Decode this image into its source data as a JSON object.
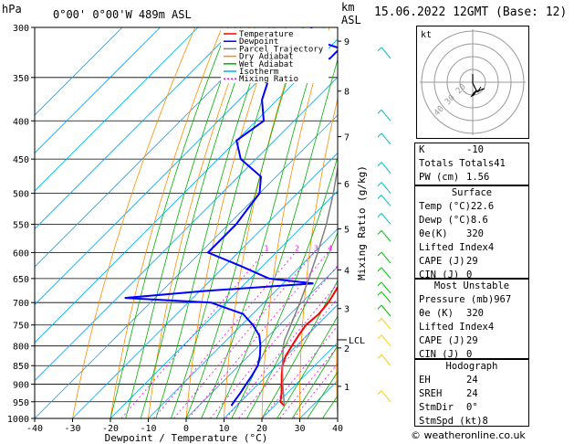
{
  "header": {
    "location": "0°00'  0°00'W  489m  ASL",
    "datetime": "15.06.2022  12GMT  (Base: 12)",
    "hpa_label": "hPa",
    "km_label": "km",
    "asl_label": "ASL"
  },
  "legend": {
    "items": [
      {
        "label": "Temperature",
        "color": "#ff0000",
        "dash": false
      },
      {
        "label": "Dewpoint",
        "color": "#0000ff",
        "dash": false
      },
      {
        "label": "Parcel Trajectory",
        "color": "#808080",
        "dash": false
      },
      {
        "label": "Dry Adiabat",
        "color": "#ff8c00",
        "dash": false
      },
      {
        "label": "Wet Adiabat",
        "color": "#00b000",
        "dash": false
      },
      {
        "label": "Isotherm",
        "color": "#00aaff",
        "dash": false
      },
      {
        "label": "Mixing Ratio",
        "color": "#ff00ff",
        "dash": true
      }
    ]
  },
  "chart_data": {
    "type": "line",
    "xlabel": "Dewpoint / Temperature (°C)",
    "ylabel_right": "Mixing Ratio (g/kg)",
    "xlim": [
      -40,
      40
    ],
    "plim": [
      300,
      1000
    ],
    "x_ticks": [
      -40,
      -30,
      -20,
      -10,
      0,
      10,
      20,
      30,
      40
    ],
    "pressure_ticks": [
      300,
      350,
      400,
      450,
      500,
      550,
      600,
      650,
      700,
      750,
      800,
      850,
      900,
      950,
      1000
    ],
    "km_ticks": [
      {
        "label": "9",
        "p": 313
      },
      {
        "label": "8",
        "p": 365
      },
      {
        "label": "7",
        "p": 420
      },
      {
        "label": "6",
        "p": 485
      },
      {
        "label": "5",
        "p": 558
      },
      {
        "label": "4",
        "p": 633
      },
      {
        "label": "3",
        "p": 713
      },
      {
        "label": "2",
        "p": 805
      },
      {
        "label": "1",
        "p": 906
      }
    ],
    "lcl": {
      "label": "LCL",
      "p": 785
    },
    "mixing_ratio_labels": [
      "1",
      "2",
      "3",
      "4",
      "6",
      "8",
      "10",
      "15",
      "20",
      "25"
    ],
    "mixing_ratio_values": [
      1,
      2,
      3,
      4,
      6,
      8,
      10,
      15,
      20,
      25
    ],
    "series": [
      {
        "name": "Temperature",
        "color": "#ff0000",
        "p": [
          962,
          950,
          925,
          900,
          875,
          850,
          825,
          800,
          775,
          750,
          725,
          700,
          675,
          650,
          625,
          600,
          575,
          550,
          525,
          500,
          475,
          450,
          425,
          400,
          375,
          350,
          325,
          300
        ],
        "t": [
          22.6,
          20.5,
          18.5,
          16.2,
          13.8,
          11.5,
          9.8,
          8.8,
          7.8,
          7.0,
          7.5,
          7.0,
          5.8,
          4.4,
          3.0,
          2.0,
          0.0,
          -2.2,
          -4.8,
          -7.6,
          -10.6,
          -13.8,
          -17.2,
          -21.0,
          -24.8,
          -29.2,
          -33.6,
          -38.2
        ]
      },
      {
        "name": "Dewpoint",
        "color": "#0000ff",
        "p": [
          962,
          950,
          925,
          900,
          875,
          850,
          825,
          800,
          775,
          750,
          725,
          700,
          690,
          675,
          660,
          650,
          625,
          600,
          575,
          550,
          525,
          500,
          475,
          450,
          425,
          400,
          375,
          350,
          330,
          320,
          310,
          300
        ],
        "t": [
          8.6,
          8.2,
          7.6,
          6.8,
          6.0,
          5.0,
          3.0,
          0.5,
          -2.5,
          -7.0,
          -12.5,
          -24.0,
          -48.0,
          -28.0,
          -2.0,
          -15.0,
          -26.0,
          -38.0,
          -38.0,
          -38.0,
          -39.0,
          -40.0,
          -44.0,
          -54.0,
          -60.0,
          -58.0,
          -64.0,
          -68.0,
          -57.0,
          -57.0,
          -68.0,
          -70.0
        ]
      },
      {
        "name": "Parcel Trajectory",
        "color": "#808080",
        "p": [
          962,
          925,
          900,
          850,
          800,
          785,
          750,
          700,
          650,
          600,
          550,
          500,
          450,
          400,
          350,
          300
        ],
        "t": [
          22.6,
          19.0,
          16.5,
          11.5,
          6.5,
          5.3,
          3.0,
          -0.5,
          -4.5,
          -9.0,
          -14.2,
          -20.5,
          -28.0,
          -37.0,
          -48.0,
          -61.0
        ]
      }
    ],
    "wind_colors": [
      "#00c0c0",
      "#00c000",
      "#ffcc00"
    ]
  },
  "indices": {
    "k_label": "K",
    "k": "-10",
    "tt_label": "Totals Totals",
    "tt": "41",
    "pw_label": "PW (cm)",
    "pw": "1.56"
  },
  "surface": {
    "title": "Surface",
    "rows": [
      {
        "k": "Temp (°C)",
        "v": "22.6"
      },
      {
        "k": "Dewp (°C)",
        "v": "8.6"
      },
      {
        "k": "θe(K)",
        "v": "320"
      },
      {
        "k": "Lifted Index",
        "v": "4"
      },
      {
        "k": "CAPE (J)",
        "v": "29"
      },
      {
        "k": "CIN (J)",
        "v": "0"
      }
    ]
  },
  "most_unstable": {
    "title": "Most Unstable",
    "rows": [
      {
        "k": "Pressure (mb)",
        "v": "967"
      },
      {
        "k": "θe (K)",
        "v": "320"
      },
      {
        "k": "Lifted Index",
        "v": "4"
      },
      {
        "k": "CAPE (J)",
        "v": "29"
      },
      {
        "k": "CIN (J)",
        "v": "0"
      }
    ]
  },
  "hodograph": {
    "title": "Hodograph",
    "kt_label": "kt",
    "ring_labels": [
      "40",
      "30",
      "20"
    ],
    "rows": [
      {
        "k": "EH",
        "v": "24"
      },
      {
        "k": "SREH",
        "v": "24"
      },
      {
        "k": "StmDir",
        "v": "0°"
      },
      {
        "k": "StmSpd (kt)",
        "v": "8"
      }
    ]
  },
  "copyright": "© weatheronline.co.uk"
}
